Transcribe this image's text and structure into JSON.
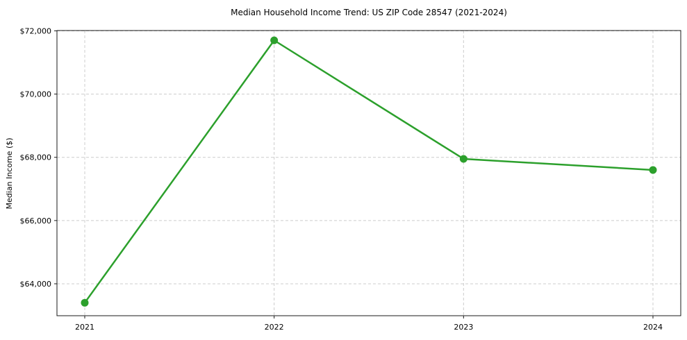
{
  "chart_data": {
    "type": "line",
    "title": "Median Household Income Trend: US ZIP Code 28547 (2021-2024)",
    "xlabel": "",
    "ylabel": "Median Income ($)",
    "categories": [
      "2021",
      "2022",
      "2023",
      "2024"
    ],
    "series": [
      {
        "name": "Median Household Income",
        "values": [
          63400,
          71700,
          67950,
          67600
        ]
      }
    ],
    "ylim": [
      62990,
      72010
    ],
    "yticks": [
      64000,
      66000,
      68000,
      70000,
      72000
    ],
    "ytick_labels": [
      "$64,000",
      "$66,000",
      "$68,000",
      "$70,000",
      "$72,000"
    ],
    "grid": true,
    "grid_style": "dashed",
    "legend_position": "none",
    "line_color": "#2ca02c",
    "marker": "circle",
    "background_color": "#ffffff",
    "grid_color": "#cccccc",
    "spine_color": "#1a1a1a",
    "text_color": "#000000"
  }
}
